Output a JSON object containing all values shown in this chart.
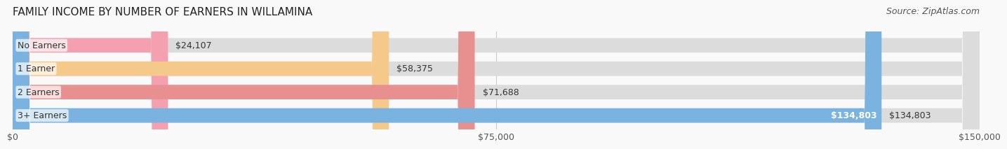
{
  "title": "FAMILY INCOME BY NUMBER OF EARNERS IN WILLAMINA",
  "source": "Source: ZipAtlas.com",
  "categories": [
    "No Earners",
    "1 Earner",
    "2 Earners",
    "3+ Earners"
  ],
  "values": [
    24107,
    58375,
    71688,
    134803
  ],
  "labels": [
    "$24,107",
    "$58,375",
    "$71,688",
    "$134,803"
  ],
  "bar_colors": [
    "#f4a0b0",
    "#f5c98a",
    "#e89090",
    "#7ab3e0"
  ],
  "bar_bg_color": "#e8e8e8",
  "max_value": 150000,
  "xticks": [
    0,
    75000,
    150000
  ],
  "xtick_labels": [
    "$0",
    "$75,000",
    "$150,000"
  ],
  "title_fontsize": 11,
  "source_fontsize": 9,
  "label_fontsize": 9,
  "tick_fontsize": 9,
  "category_fontsize": 9,
  "bg_color": "#f9f9f9",
  "bar_bg_color2": "#e0e0e0"
}
